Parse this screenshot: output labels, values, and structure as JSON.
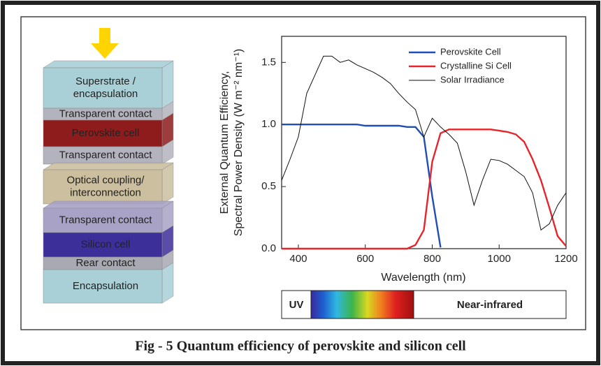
{
  "diagram": {
    "layers": [
      [
        "Superstrate /",
        "encapsulation"
      ],
      [
        "Transparent contact"
      ],
      [
        "Perovskite cell"
      ],
      [
        "Transparent contact"
      ],
      [
        "Optical coupling/",
        "interconnection"
      ],
      [
        "Transparent contact"
      ],
      [
        "Silicon cell"
      ],
      [
        "Rear contact"
      ],
      [
        "Encapsulation"
      ]
    ]
  },
  "chart_data": {
    "type": "line",
    "x_label": "Wavelength (nm)",
    "y_label": [
      "External Quantum Efficiency,",
      "Spectral Power Density (W m⁻² nm⁻¹)"
    ],
    "x": [
      350,
      375,
      400,
      425,
      450,
      475,
      500,
      525,
      550,
      575,
      600,
      625,
      650,
      675,
      700,
      725,
      750,
      775,
      800,
      825,
      850,
      875,
      900,
      925,
      950,
      975,
      1000,
      1025,
      1050,
      1075,
      1100,
      1125,
      1150,
      1175,
      1200
    ],
    "series": [
      {
        "name": "Perovskite Cell",
        "color": "#1f4fb4",
        "values": [
          1.0,
          1.0,
          1.0,
          1.0,
          1.0,
          1.0,
          1.0,
          1.0,
          1.0,
          1.0,
          0.99,
          0.99,
          0.99,
          0.99,
          0.99,
          0.98,
          0.98,
          0.9,
          0.42,
          0.01,
          null,
          null,
          null,
          null,
          null,
          null,
          null,
          null,
          null,
          null,
          null,
          null,
          null,
          null,
          null
        ]
      },
      {
        "name": "Crystalline Si Cell",
        "color": "#e8242b",
        "values": [
          0.0,
          0.0,
          0.0,
          0.0,
          0.0,
          0.0,
          0.0,
          0.0,
          0.0,
          0.0,
          0.0,
          0.0,
          0.0,
          0.0,
          0.0,
          0.0,
          0.03,
          0.15,
          0.7,
          0.93,
          0.96,
          0.96,
          0.96,
          0.96,
          0.96,
          0.96,
          0.95,
          0.94,
          0.92,
          0.86,
          0.72,
          0.55,
          0.33,
          0.1,
          0.02
        ]
      },
      {
        "name": "Solar Irradiance",
        "color": "#111111",
        "values": [
          0.55,
          0.72,
          0.9,
          1.25,
          1.4,
          1.55,
          1.55,
          1.5,
          1.52,
          1.48,
          1.45,
          1.42,
          1.38,
          1.33,
          1.25,
          1.18,
          1.12,
          0.9,
          1.05,
          0.98,
          0.92,
          0.85,
          0.62,
          0.35,
          0.55,
          0.72,
          0.71,
          0.68,
          0.63,
          0.58,
          0.45,
          0.15,
          0.2,
          0.35,
          0.45
        ]
      }
    ],
    "xlim": [
      350,
      1200
    ],
    "xticks": [
      400,
      600,
      800,
      1000,
      1200
    ],
    "ylim": [
      0,
      1.71
    ],
    "yticks": [
      {
        "value": 0,
        "label": "0.0"
      },
      0.5,
      {
        "value": 1,
        "label": "1.0"
      },
      1.5
    ],
    "legend": "upper right"
  },
  "spectrum_bar": {
    "labels": [
      "UV",
      "Near-infrared"
    ]
  },
  "caption": "Fig - 5 Quantum efficiency of perovskite and silicon cell"
}
